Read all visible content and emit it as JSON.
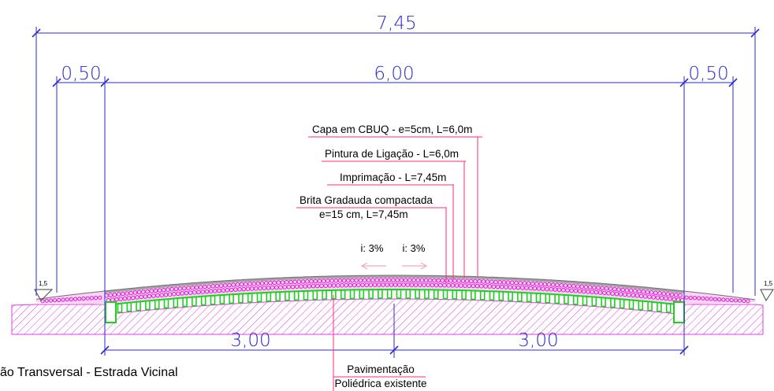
{
  "dimensions": {
    "total_width": "7,45",
    "left_shoulder": "0,50",
    "carriageway": "6,00",
    "right_shoulder": "0,50",
    "left_half": "3,00",
    "right_half": "3,00"
  },
  "slope_ratio": {
    "left": "1,5",
    "right": "1,5"
  },
  "crossfall": {
    "left": "i: 3%",
    "right": "i: 3%"
  },
  "layers": {
    "surface_course": "Capa em CBUQ - e=5cm, L=6,0m",
    "tack_coat": "Pintura de Ligação - L=6,0m",
    "prime_coat": "Imprimação - L=7,45m",
    "base_course": [
      "Brita Gradauda compactada",
      "e=15 cm, L=7,45m"
    ],
    "existing_pavement": [
      "Pavimentação",
      "Poliédrica existente"
    ]
  },
  "caption": "ão Transversal - Estrada Vicinal",
  "colors": {
    "dimension": "#2b2bd0",
    "leader": "#ff2a7f",
    "arrow": "#f4a6c6",
    "ground_hatch": "#e23ce2",
    "base_fill": "#f9d3f4",
    "base_circles": "#e01ad6",
    "pavers": "#1fcf1f",
    "cbuq": "#a3a3a3",
    "text": "#000000"
  }
}
